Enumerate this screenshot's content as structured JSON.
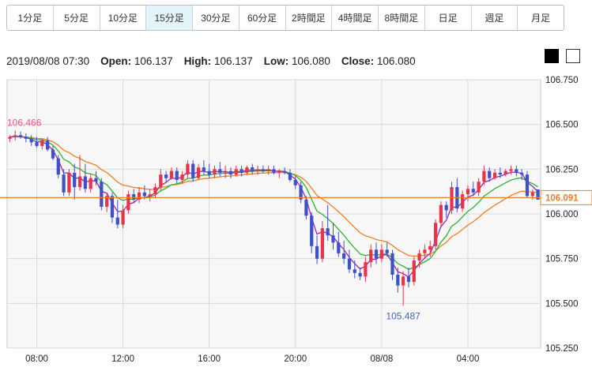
{
  "tabs": [
    {
      "label": "1分足",
      "active": false
    },
    {
      "label": "5分足",
      "active": false
    },
    {
      "label": "10分足",
      "active": false
    },
    {
      "label": "15分足",
      "active": true
    },
    {
      "label": "30分足",
      "active": false
    },
    {
      "label": "60分足",
      "active": false
    },
    {
      "label": "2時間足",
      "active": false
    },
    {
      "label": "4時間足",
      "active": false
    },
    {
      "label": "8時間足",
      "active": false
    },
    {
      "label": "日足",
      "active": false
    },
    {
      "label": "週足",
      "active": false
    },
    {
      "label": "月足",
      "active": false
    }
  ],
  "ohlc": {
    "datetime": "2019/08/08 07:30",
    "open_label": "Open:",
    "open": "106.137",
    "high_label": "High:",
    "high": "106.137",
    "low_label": "Low:",
    "low": "106.080",
    "close_label": "Close:",
    "close": "106.080"
  },
  "colors": {
    "up": "#e8334a",
    "down": "#3f51c8",
    "ma_short": "#9c27b0",
    "ma_mid": "#2bb52b",
    "ma_long": "#f07d22",
    "price_line": "#f07d22",
    "grid": "#d8d8d8",
    "plot_bg": "#f7f7f7"
  },
  "chart_data": {
    "type": "candlestick",
    "ylim": [
      105.25,
      106.75
    ],
    "y_ticks": [
      "106.750",
      "106.500",
      "106.250",
      "106.000",
      "105.750",
      "105.500",
      "105.250"
    ],
    "x_ticks": [
      {
        "label": "08:00",
        "index": 5
      },
      {
        "label": "12:00",
        "index": 21
      },
      {
        "label": "16:00",
        "index": 37
      },
      {
        "label": "20:00",
        "index": 53
      },
      {
        "label": "08/08",
        "index": 69
      },
      {
        "label": "04:00",
        "index": 85
      }
    ],
    "current_price": "106.091",
    "annotations": [
      {
        "text": "106.466",
        "index": 1,
        "value": 106.466,
        "color": "#e05a7a"
      },
      {
        "text": "105.487",
        "index": 73,
        "value": 105.487,
        "color": "#4466aa"
      }
    ],
    "candles": [
      [
        106.42,
        106.44,
        106.4,
        106.43
      ],
      [
        106.43,
        106.466,
        106.41,
        106.44
      ],
      [
        106.44,
        106.46,
        106.42,
        106.43
      ],
      [
        106.43,
        106.45,
        106.4,
        106.42
      ],
      [
        106.42,
        106.44,
        106.38,
        106.4
      ],
      [
        106.4,
        106.43,
        106.37,
        106.38
      ],
      [
        106.38,
        106.42,
        106.36,
        106.41
      ],
      [
        106.41,
        106.43,
        106.35,
        106.36
      ],
      [
        106.36,
        106.38,
        106.3,
        106.31
      ],
      [
        106.31,
        106.33,
        106.2,
        106.22
      ],
      [
        106.22,
        106.25,
        106.1,
        106.12
      ],
      [
        106.12,
        106.25,
        106.1,
        106.23
      ],
      [
        106.23,
        106.28,
        106.08,
        106.15
      ],
      [
        106.15,
        106.33,
        106.13,
        106.21
      ],
      [
        106.21,
        106.28,
        106.12,
        106.14
      ],
      [
        106.14,
        106.22,
        106.12,
        106.2
      ],
      [
        106.2,
        106.24,
        106.16,
        106.18
      ],
      [
        106.18,
        106.2,
        106.02,
        106.04
      ],
      [
        106.04,
        106.12,
        106.01,
        106.1
      ],
      [
        106.1,
        106.12,
        105.95,
        105.98
      ],
      [
        105.98,
        106.08,
        105.92,
        105.94
      ],
      [
        105.94,
        106.05,
        105.92,
        106.02
      ],
      [
        106.02,
        106.13,
        106.0,
        106.11
      ],
      [
        106.11,
        106.14,
        106.06,
        106.08
      ],
      [
        106.08,
        106.15,
        106.06,
        106.12
      ],
      [
        106.12,
        106.16,
        106.08,
        106.1
      ],
      [
        106.1,
        106.14,
        106.07,
        106.11
      ],
      [
        106.11,
        106.17,
        106.09,
        106.15
      ],
      [
        106.15,
        106.25,
        106.13,
        106.22
      ],
      [
        106.22,
        106.24,
        106.18,
        106.2
      ],
      [
        106.2,
        106.26,
        106.19,
        106.24
      ],
      [
        106.24,
        106.26,
        106.17,
        106.19
      ],
      [
        106.19,
        106.24,
        106.17,
        106.22
      ],
      [
        106.22,
        106.3,
        106.2,
        106.28
      ],
      [
        106.28,
        106.3,
        106.18,
        106.2
      ],
      [
        106.2,
        106.28,
        106.19,
        106.26
      ],
      [
        106.26,
        106.3,
        106.22,
        106.24
      ],
      [
        106.24,
        106.28,
        106.2,
        106.22
      ],
      [
        106.22,
        106.27,
        106.2,
        106.25
      ],
      [
        106.25,
        106.29,
        106.21,
        106.23
      ],
      [
        106.23,
        106.27,
        106.2,
        106.24
      ],
      [
        106.24,
        106.26,
        106.2,
        106.22
      ],
      [
        106.22,
        106.27,
        106.21,
        106.25
      ],
      [
        106.25,
        106.27,
        106.21,
        106.23
      ],
      [
        106.23,
        106.27,
        106.22,
        106.26
      ],
      [
        106.26,
        106.28,
        106.22,
        106.24
      ],
      [
        106.24,
        106.27,
        106.22,
        106.25
      ],
      [
        106.25,
        106.27,
        106.23,
        106.24
      ],
      [
        106.24,
        106.27,
        106.22,
        106.25
      ],
      [
        106.25,
        106.27,
        106.22,
        106.23
      ],
      [
        106.23,
        106.25,
        106.2,
        106.24
      ],
      [
        106.24,
        106.26,
        106.22,
        106.23
      ],
      [
        106.23,
        106.25,
        106.18,
        106.19
      ],
      [
        106.19,
        106.21,
        106.14,
        106.16
      ],
      [
        106.16,
        106.18,
        106.06,
        106.08
      ],
      [
        106.08,
        106.1,
        105.97,
        105.99
      ],
      [
        105.99,
        106.01,
        105.78,
        105.82
      ],
      [
        105.82,
        105.88,
        105.72,
        105.75
      ],
      [
        105.75,
        105.96,
        105.73,
        105.92
      ],
      [
        105.92,
        106.05,
        105.85,
        105.88
      ],
      [
        105.88,
        105.95,
        105.8,
        105.84
      ],
      [
        105.84,
        105.9,
        105.76,
        105.78
      ],
      [
        105.78,
        105.85,
        105.72,
        105.75
      ],
      [
        105.75,
        105.8,
        105.67,
        105.69
      ],
      [
        105.69,
        105.74,
        105.64,
        105.67
      ],
      [
        105.67,
        105.7,
        105.63,
        105.65
      ],
      [
        105.65,
        105.76,
        105.62,
        105.73
      ],
      [
        105.73,
        105.83,
        105.7,
        105.8
      ],
      [
        105.8,
        105.84,
        105.72,
        105.75
      ],
      [
        105.75,
        105.83,
        105.73,
        105.8
      ],
      [
        105.8,
        105.84,
        105.76,
        105.78
      ],
      [
        105.78,
        105.8,
        105.63,
        105.66
      ],
      [
        105.66,
        105.7,
        105.56,
        105.6
      ],
      [
        105.6,
        105.68,
        105.487,
        105.65
      ],
      [
        105.65,
        105.7,
        105.59,
        105.62
      ],
      [
        105.62,
        105.76,
        105.6,
        105.74
      ],
      [
        105.74,
        105.8,
        105.7,
        105.78
      ],
      [
        105.78,
        105.83,
        105.75,
        105.8
      ],
      [
        105.8,
        105.85,
        105.76,
        105.82
      ],
      [
        105.82,
        105.97,
        105.8,
        105.95
      ],
      [
        105.95,
        106.07,
        105.93,
        106.05
      ],
      [
        106.05,
        106.07,
        105.98,
        106.02
      ],
      [
        106.02,
        106.18,
        106.0,
        106.15
      ],
      [
        106.15,
        106.2,
        106.01,
        106.03
      ],
      [
        106.03,
        106.13,
        106.01,
        106.11
      ],
      [
        106.11,
        106.16,
        106.07,
        106.14
      ],
      [
        106.14,
        106.18,
        106.1,
        106.12
      ],
      [
        106.12,
        106.2,
        106.1,
        106.18
      ],
      [
        106.18,
        106.27,
        106.16,
        106.24
      ],
      [
        106.24,
        106.26,
        106.18,
        106.2
      ],
      [
        106.2,
        106.25,
        106.19,
        106.23
      ],
      [
        106.23,
        106.26,
        106.2,
        106.22
      ],
      [
        106.22,
        106.25,
        106.21,
        106.24
      ],
      [
        106.24,
        106.27,
        106.22,
        106.25
      ],
      [
        106.25,
        106.27,
        106.21,
        106.23
      ],
      [
        106.23,
        106.25,
        106.19,
        106.22
      ],
      [
        106.22,
        106.24,
        106.09,
        106.1
      ],
      [
        106.1,
        106.137,
        106.08,
        106.12
      ],
      [
        106.137,
        106.137,
        106.08,
        106.08
      ]
    ]
  }
}
